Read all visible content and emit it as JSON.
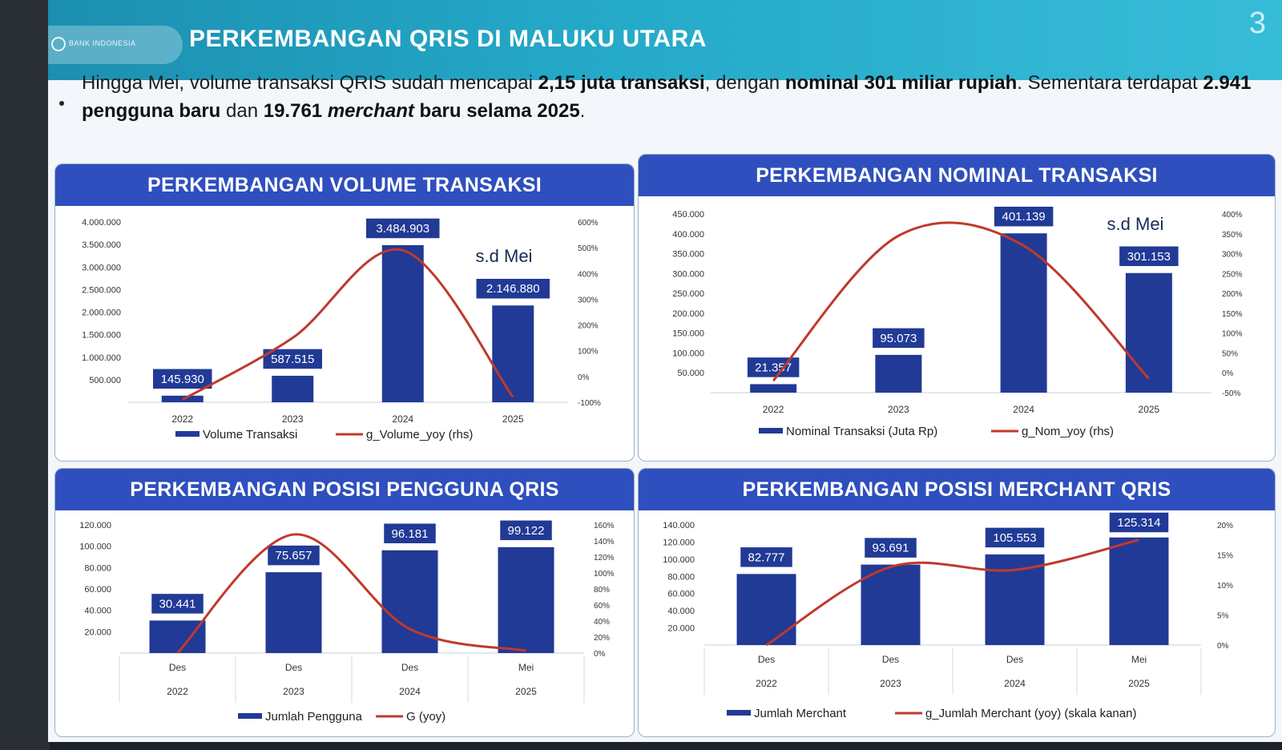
{
  "header": {
    "title": "PERKEMBANGAN QRIS DI MALUKU UTARA",
    "page_number": "3",
    "logo_text": "BANK INDONESIA"
  },
  "summary": {
    "t1": "Hingga Mei, volume transaksi QRIS sudah mencapai ",
    "b1": "2,15 juta transaksi",
    "t2": ", dengan ",
    "b2": "nominal 301 miliar rupiah",
    "t3": ". Sementara terdapat ",
    "b3": "2.941 pengguna baru",
    "t4": " dan ",
    "b4": "19.761 ",
    "i4": "merchant",
    "b5": " baru selama 2025",
    "t5": "."
  },
  "colors": {
    "bar": "#213a96",
    "line": "#c0392b",
    "header_bar": "#2f4fbe",
    "label_box": "#213a96"
  },
  "chart_data": [
    {
      "type": "bar",
      "title": "PERKEMBANGAN VOLUME TRANSAKSI",
      "categories": [
        "2022",
        "2023",
        "2024",
        "2025"
      ],
      "values": [
        145930,
        587515,
        3484903,
        2146880
      ],
      "value_labels": [
        "145.930",
        "587.515",
        "3.484.903",
        "2.146.880"
      ],
      "line_values": [
        -90,
        150,
        490,
        -80
      ],
      "ylim": [
        0,
        4000000
      ],
      "y_ticks": [
        "500.000",
        "1.000.000",
        "1.500.000",
        "2.000.000",
        "2.500.000",
        "3.000.000",
        "3.500.000",
        "4.000.000"
      ],
      "y2lim": [
        -100,
        600
      ],
      "y2_ticks": [
        "-100%",
        "0%",
        "100%",
        "200%",
        "300%",
        "400%",
        "500%",
        "600%"
      ],
      "annotation": "s.d Mei",
      "legend": [
        "Volume Transaksi",
        "g_Volume_yoy (rhs)"
      ]
    },
    {
      "type": "bar",
      "title": "PERKEMBANGAN NOMINAL TRANSAKSI",
      "categories": [
        "2022",
        "2023",
        "2024",
        "2025"
      ],
      "values": [
        21357,
        95073,
        401139,
        301153
      ],
      "value_labels": [
        "21.357",
        "95.073",
        "401.139",
        "301.153"
      ],
      "line_values": [
        -20,
        345,
        320,
        -15
      ],
      "ylim": [
        0,
        450000
      ],
      "y_ticks": [
        "50.000",
        "100.000",
        "150.000",
        "200.000",
        "250.000",
        "300.000",
        "350.000",
        "400.000",
        "450.000"
      ],
      "y2lim": [
        -50,
        400
      ],
      "y2_ticks": [
        "-50%",
        "0%",
        "50%",
        "100%",
        "150%",
        "200%",
        "250%",
        "300%",
        "350%",
        "400%"
      ],
      "annotation": "s.d Mei",
      "legend": [
        "Nominal Transaksi (Juta Rp)",
        "g_Nom_yoy (rhs)"
      ]
    },
    {
      "type": "bar",
      "title": "PERKEMBANGAN POSISI PENGGUNA QRIS",
      "categories": [
        [
          "Des",
          "2022"
        ],
        [
          "Des",
          "2023"
        ],
        [
          "Des",
          "2024"
        ],
        [
          "Mei",
          "2025"
        ]
      ],
      "values": [
        30441,
        75657,
        96181,
        99122
      ],
      "value_labels": [
        "30.441",
        "75.657",
        "96.181",
        "99.122"
      ],
      "line_values": [
        0,
        148,
        30,
        3
      ],
      "ylim": [
        0,
        120000
      ],
      "y_ticks": [
        "20.000",
        "40.000",
        "60.000",
        "80.000",
        "100.000",
        "120.000"
      ],
      "y2lim": [
        0,
        160
      ],
      "y2_ticks": [
        "0%",
        "20%",
        "40%",
        "60%",
        "80%",
        "100%",
        "120%",
        "140%",
        "160%"
      ],
      "legend": [
        "Jumlah Pengguna",
        "G (yoy)"
      ]
    },
    {
      "type": "bar",
      "title": "PERKEMBANGAN POSISI MERCHANT QRIS",
      "categories": [
        [
          "Des",
          "2022"
        ],
        [
          "Des",
          "2023"
        ],
        [
          "Des",
          "2024"
        ],
        [
          "Mei",
          "2025"
        ]
      ],
      "values": [
        82777,
        93691,
        105553,
        125314
      ],
      "value_labels": [
        "82.777",
        "93.691",
        "105.553",
        "125.314"
      ],
      "line_values": [
        0,
        13,
        12.5,
        17.5
      ],
      "ylim": [
        0,
        140000
      ],
      "y_ticks": [
        "20.000",
        "40.000",
        "60.000",
        "80.000",
        "100.000",
        "120.000",
        "140.000"
      ],
      "y2lim": [
        0,
        20
      ],
      "y2_ticks": [
        "0%",
        "5%",
        "10%",
        "15%",
        "20%"
      ],
      "legend": [
        "Jumlah Merchant",
        "g_Jumlah Merchant (yoy) (skala kanan)"
      ]
    }
  ]
}
